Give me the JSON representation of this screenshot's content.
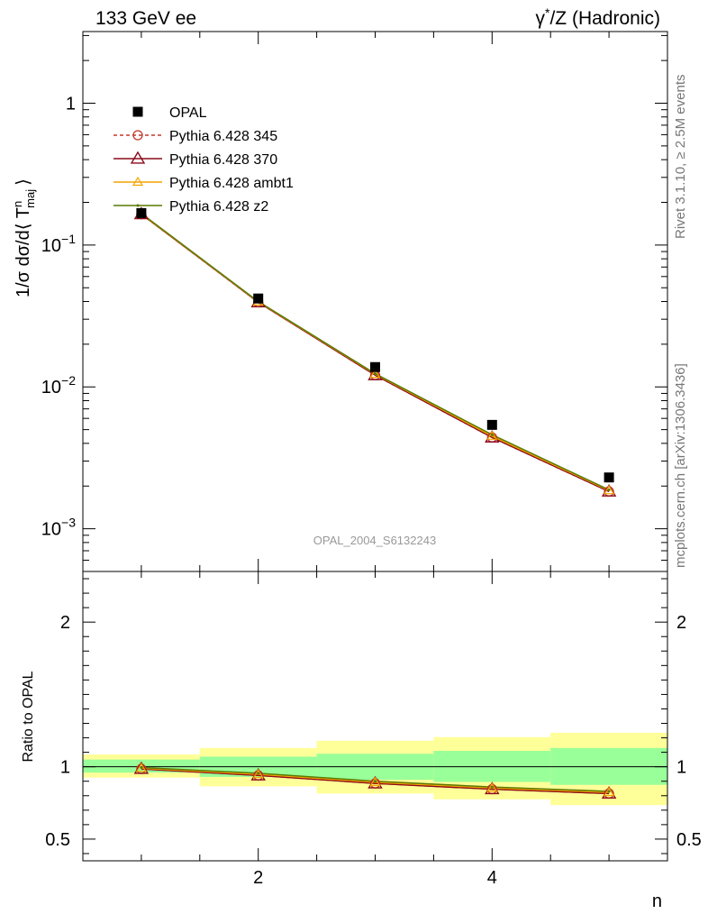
{
  "header": {
    "left_title": "133 GeV ee",
    "right_title_parts": [
      "γ",
      "*",
      "/Z (Hadronic)"
    ]
  },
  "side_labels": {
    "rivet": "Rivet 3.1.10, ≥ 2.5M events",
    "mcplots": "mcplots.cern.ch [arXiv:1306.3436]"
  },
  "watermark": "OPAL_2004_S6132243",
  "chart_data": [
    {
      "type": "line",
      "panel": "main",
      "yscale": "log",
      "ylim": [
        0.0005,
        3.2
      ],
      "xlim": [
        0.5,
        5.5
      ],
      "ylabel": "1/σ dσ/d⟨ T^n_maj ⟩",
      "ylabel_parts": {
        "main": "1/σ dσ/d⟨ T",
        "sup": "n",
        "sub": "maj",
        "close": "⟩"
      },
      "yticks": [
        {
          "value": 1,
          "base": "1",
          "exp": ""
        },
        {
          "value": 0.1,
          "base": "10",
          "exp": "−1"
        },
        {
          "value": 0.01,
          "base": "10",
          "exp": "−2"
        },
        {
          "value": 0.001,
          "base": "10",
          "exp": "−3"
        }
      ],
      "x": [
        1,
        2,
        3,
        4,
        5
      ],
      "series": [
        {
          "name": "OPAL",
          "marker": "square",
          "color": "#000000",
          "values": [
            0.168,
            0.042,
            0.0138,
            0.0054,
            0.0023
          ]
        },
        {
          "name": "Pythia 6.428 345",
          "marker": "circle",
          "color": "#c0392b",
          "dash": "4,3",
          "values": [
            0.165,
            0.0395,
            0.0121,
            0.0044,
            0.00183
          ]
        },
        {
          "name": "Pythia 6.428 370",
          "marker": "triangle",
          "color": "#8b0a1a",
          "values": [
            0.165,
            0.0395,
            0.0121,
            0.0044,
            0.00183
          ]
        },
        {
          "name": "Pythia 6.428 ambt1",
          "marker": "triangle-small",
          "color": "#f5a300",
          "values": [
            0.166,
            0.0398,
            0.0123,
            0.0045,
            0.00186
          ]
        },
        {
          "name": "Pythia 6.428 z2",
          "marker": "dot",
          "color": "#5a7a00",
          "values": [
            0.167,
            0.04,
            0.0124,
            0.0046,
            0.00188
          ]
        }
      ]
    },
    {
      "type": "line",
      "panel": "ratio",
      "ylim": [
        0.35,
        2.35
      ],
      "xlim": [
        0.5,
        5.5
      ],
      "xlabel": "n",
      "ylabel": "Ratio to OPAL",
      "yticks": [
        2,
        1,
        0.5
      ],
      "ytick_labels": [
        "2",
        "1",
        "0.5"
      ],
      "xticks": [
        2,
        4
      ],
      "xtick_labels": [
        "2",
        "4"
      ],
      "bins": [
        [
          0.5,
          1.5
        ],
        [
          1.5,
          2.5
        ],
        [
          2.5,
          3.5
        ],
        [
          3.5,
          4.5
        ],
        [
          4.5,
          5.5
        ]
      ],
      "band_inner": [
        [
          0.96,
          1.05
        ],
        [
          0.93,
          1.07
        ],
        [
          0.91,
          1.09
        ],
        [
          0.895,
          1.11
        ],
        [
          0.875,
          1.13
        ]
      ],
      "band_outer": [
        [
          0.925,
          1.085
        ],
        [
          0.865,
          1.13
        ],
        [
          0.815,
          1.18
        ],
        [
          0.775,
          1.205
        ],
        [
          0.735,
          1.235
        ]
      ],
      "x": [
        1,
        2,
        3,
        4,
        5
      ],
      "series": [
        {
          "name": "Pythia 6.428 345",
          "color": "#c0392b",
          "values": [
            0.985,
            0.94,
            0.885,
            0.845,
            0.815
          ]
        },
        {
          "name": "Pythia 6.428 370",
          "color": "#8b0a1a",
          "values": [
            0.985,
            0.94,
            0.885,
            0.845,
            0.815
          ]
        },
        {
          "name": "Pythia 6.428 ambt1",
          "color": "#f5a300",
          "values": [
            0.99,
            0.948,
            0.893,
            0.853,
            0.823
          ]
        },
        {
          "name": "Pythia 6.428 z2",
          "color": "#5a7a00",
          "values": [
            0.995,
            0.955,
            0.9,
            0.86,
            0.83
          ]
        }
      ]
    }
  ]
}
